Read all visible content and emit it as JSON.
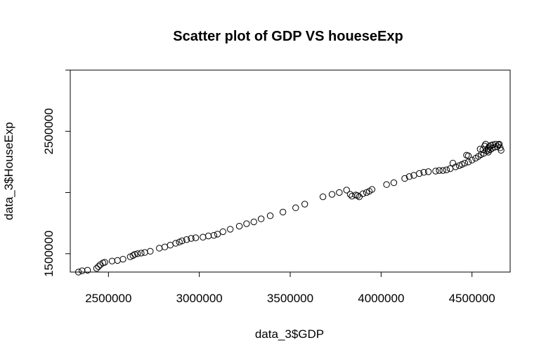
{
  "chart_data": {
    "type": "scatter",
    "title": "Scatter plot of GDP VS houeseExp",
    "xlabel": "data_3$GDP",
    "ylabel": "data_3$HouseExp",
    "xlim": [
      2290000,
      4710000
    ],
    "ylim": [
      1350000,
      3000000
    ],
    "xticks": [
      2500000,
      3000000,
      3500000,
      4000000,
      4500000
    ],
    "yticks": [
      1500000,
      2000000,
      2500000,
      3000000
    ],
    "xtick_labels": [
      "2500000",
      "3000000",
      "3500000",
      "4000000",
      "4500000"
    ],
    "ytick_labels": [
      "1500000",
      "",
      "2500000",
      ""
    ],
    "marker": "open-circle",
    "grid": false,
    "legend": "none",
    "points": [
      [
        2335000,
        1350000
      ],
      [
        2355000,
        1360000
      ],
      [
        2385000,
        1365000
      ],
      [
        2435000,
        1380000
      ],
      [
        2445000,
        1395000
      ],
      [
        2455000,
        1410000
      ],
      [
        2470000,
        1425000
      ],
      [
        2480000,
        1430000
      ],
      [
        2520000,
        1440000
      ],
      [
        2550000,
        1445000
      ],
      [
        2580000,
        1455000
      ],
      [
        2620000,
        1475000
      ],
      [
        2635000,
        1485000
      ],
      [
        2645000,
        1495000
      ],
      [
        2660000,
        1500000
      ],
      [
        2680000,
        1505000
      ],
      [
        2700000,
        1510000
      ],
      [
        2730000,
        1520000
      ],
      [
        2780000,
        1545000
      ],
      [
        2810000,
        1555000
      ],
      [
        2840000,
        1570000
      ],
      [
        2870000,
        1585000
      ],
      [
        2890000,
        1595000
      ],
      [
        2905000,
        1605000
      ],
      [
        2930000,
        1615000
      ],
      [
        2955000,
        1625000
      ],
      [
        2980000,
        1630000
      ],
      [
        3020000,
        1635000
      ],
      [
        3050000,
        1645000
      ],
      [
        3080000,
        1650000
      ],
      [
        3100000,
        1660000
      ],
      [
        3130000,
        1680000
      ],
      [
        3170000,
        1700000
      ],
      [
        3220000,
        1725000
      ],
      [
        3260000,
        1745000
      ],
      [
        3300000,
        1760000
      ],
      [
        3340000,
        1785000
      ],
      [
        3390000,
        1810000
      ],
      [
        3460000,
        1840000
      ],
      [
        3530000,
        1875000
      ],
      [
        3580000,
        1905000
      ],
      [
        3680000,
        1965000
      ],
      [
        3730000,
        1985000
      ],
      [
        3770000,
        2000000
      ],
      [
        3810000,
        2020000
      ],
      [
        3830000,
        1985000
      ],
      [
        3840000,
        1970000
      ],
      [
        3860000,
        1980000
      ],
      [
        3880000,
        1965000
      ],
      [
        3870000,
        1975000
      ],
      [
        3900000,
        1990000
      ],
      [
        3920000,
        2000000
      ],
      [
        3935000,
        2010000
      ],
      [
        3950000,
        2025000
      ],
      [
        4030000,
        2065000
      ],
      [
        4070000,
        2080000
      ],
      [
        4130000,
        2115000
      ],
      [
        4155000,
        2130000
      ],
      [
        4180000,
        2140000
      ],
      [
        4210000,
        2155000
      ],
      [
        4235000,
        2165000
      ],
      [
        4260000,
        2170000
      ],
      [
        4300000,
        2175000
      ],
      [
        4320000,
        2180000
      ],
      [
        4340000,
        2180000
      ],
      [
        4360000,
        2185000
      ],
      [
        4380000,
        2195000
      ],
      [
        4410000,
        2210000
      ],
      [
        4430000,
        2220000
      ],
      [
        4445000,
        2230000
      ],
      [
        4460000,
        2240000
      ],
      [
        4480000,
        2250000
      ],
      [
        4500000,
        2265000
      ],
      [
        4520000,
        2280000
      ],
      [
        4535000,
        2295000
      ],
      [
        4550000,
        2310000
      ],
      [
        4565000,
        2320000
      ],
      [
        4580000,
        2340000
      ],
      [
        4590000,
        2330000
      ],
      [
        4600000,
        2350000
      ],
      [
        4610000,
        2360000
      ],
      [
        4625000,
        2370000
      ],
      [
        4640000,
        2375000
      ],
      [
        4655000,
        2365000
      ],
      [
        4660000,
        2345000
      ],
      [
        4470000,
        2305000
      ],
      [
        4480000,
        2300000
      ],
      [
        4545000,
        2355000
      ],
      [
        4560000,
        2350000
      ],
      [
        4570000,
        2380000
      ],
      [
        4595000,
        2375000
      ],
      [
        4615000,
        2390000
      ],
      [
        4630000,
        2395000
      ],
      [
        4645000,
        2390000
      ],
      [
        4575000,
        2395000
      ],
      [
        4588000,
        2360000
      ],
      [
        4603000,
        2385000
      ],
      [
        4650000,
        2395000
      ],
      [
        4590000,
        2345000
      ],
      [
        4395000,
        2240000
      ]
    ]
  }
}
